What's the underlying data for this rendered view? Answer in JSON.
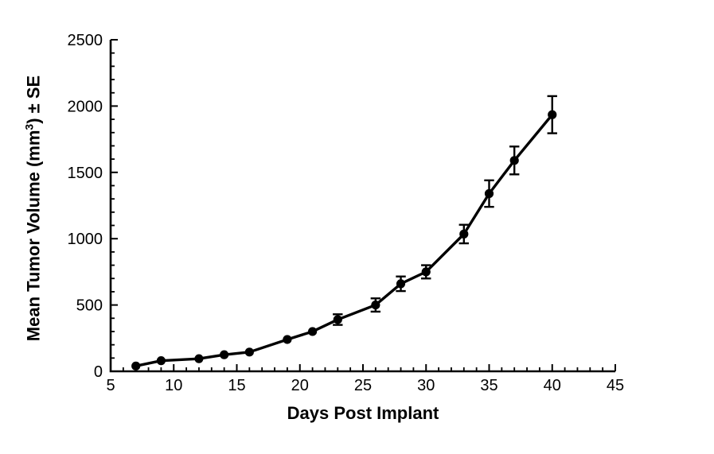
{
  "figure": {
    "background": "#ffffff",
    "ink_color": "#000000"
  },
  "chart_data": {
    "type": "line",
    "title": "",
    "xlabel": "Days Post Implant",
    "ylabel": "Mean Tumor Volume (mm³) ± SE",
    "ylabel_parts": {
      "pre": "Mean Tumor Volume (mm",
      "sup": "3",
      "post": ") ± SE"
    },
    "x": [
      7,
      9,
      12,
      14,
      16,
      19,
      21,
      23,
      26,
      28,
      30,
      33,
      35,
      37,
      40
    ],
    "series": [
      {
        "name": "Mean Tumor Volume",
        "values": [
          40,
          80,
          95,
          125,
          145,
          240,
          300,
          390,
          500,
          660,
          750,
          1035,
          1340,
          1590,
          1935
        ],
        "se": [
          0,
          0,
          0,
          0,
          0,
          0,
          0,
          40,
          50,
          55,
          50,
          70,
          100,
          105,
          140
        ]
      }
    ],
    "xlim": [
      5,
      45
    ],
    "ylim": [
      0,
      2500
    ],
    "x_major_ticks": [
      5,
      10,
      15,
      20,
      25,
      30,
      35,
      40,
      45
    ],
    "x_minor_step": 1,
    "y_major_ticks": [
      0,
      500,
      1000,
      1500,
      2000,
      2500
    ],
    "y_minor_step": 100,
    "grid": false,
    "legend": "none",
    "marker": "filled-circle",
    "error_bars": true,
    "line_color": "#000000",
    "marker_color": "#000000",
    "tick_direction": "in"
  }
}
